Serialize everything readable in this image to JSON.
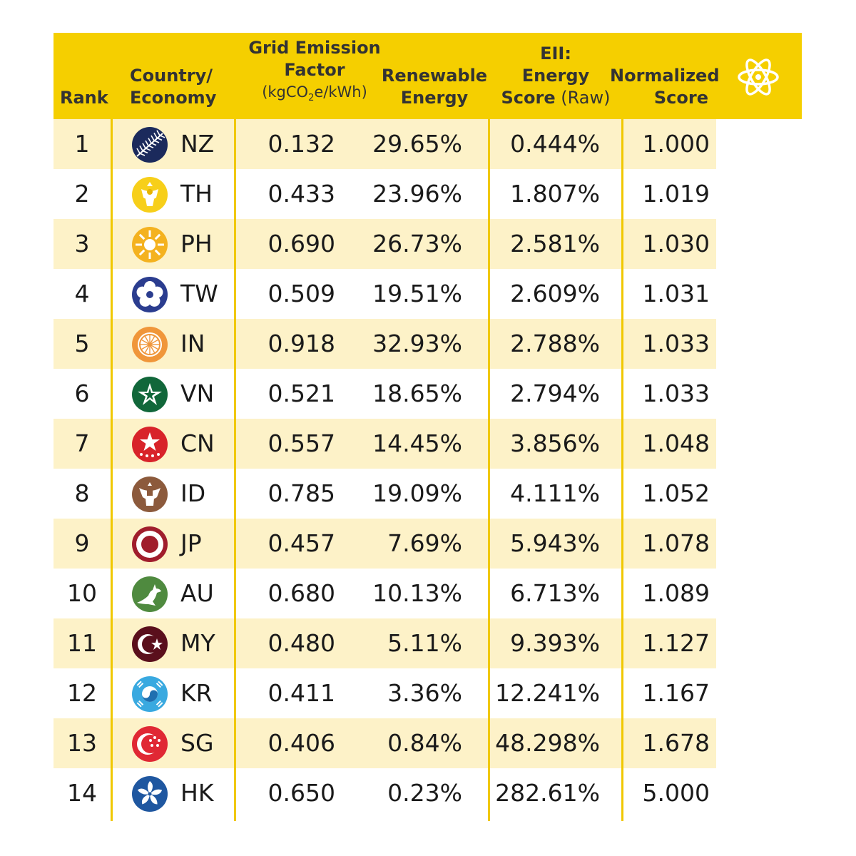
{
  "chart_data": {
    "type": "table",
    "columns": {
      "rank": "Rank",
      "country_line1": "Country/",
      "country_line2": "Economy",
      "grid_line1": "Grid Emission",
      "grid_line2": "Factor",
      "grid_unit_a": "(kgCO",
      "grid_unit_sub": "2",
      "grid_unit_b": "e/kWh)",
      "renew_line1": "Renewable",
      "renew_line2": "Energy",
      "eii_line1": "EII:",
      "eii_line2": "Energy",
      "eii_line3_bold": "Score",
      "eii_line3_light": " (Raw)",
      "norm_line1": "Normalized",
      "norm_line2": "Score"
    },
    "rows": [
      {
        "rank": "1",
        "code": "NZ",
        "flag_icon": "silver-fern-icon",
        "grid": "0.132",
        "renewable": "29.65%",
        "eii_raw": "0.444%",
        "normalized": "1.000"
      },
      {
        "rank": "2",
        "code": "TH",
        "flag_icon": "garuda-emblem-icon",
        "grid": "0.433",
        "renewable": "23.96%",
        "eii_raw": "1.807%",
        "normalized": "1.019"
      },
      {
        "rank": "3",
        "code": "PH",
        "flag_icon": "sun-icon",
        "grid": "0.690",
        "renewable": "26.73%",
        "eii_raw": "2.581%",
        "normalized": "1.030"
      },
      {
        "rank": "4",
        "code": "TW",
        "flag_icon": "plum-blossom-icon",
        "grid": "0.509",
        "renewable": "19.51%",
        "eii_raw": "2.609%",
        "normalized": "1.031"
      },
      {
        "rank": "5",
        "code": "IN",
        "flag_icon": "ashoka-chakra-icon",
        "grid": "0.918",
        "renewable": "32.93%",
        "eii_raw": "2.788%",
        "normalized": "1.033"
      },
      {
        "rank": "6",
        "code": "VN",
        "flag_icon": "star-icon",
        "grid": "0.521",
        "renewable": "18.65%",
        "eii_raw": "2.794%",
        "normalized": "1.033"
      },
      {
        "rank": "7",
        "code": "CN",
        "flag_icon": "five-stars-icon",
        "grid": "0.557",
        "renewable": "14.45%",
        "eii_raw": "3.856%",
        "normalized": "1.048"
      },
      {
        "rank": "8",
        "code": "ID",
        "flag_icon": "garuda-pancasila-icon",
        "grid": "0.785",
        "renewable": "19.09%",
        "eii_raw": "4.111%",
        "normalized": "1.052"
      },
      {
        "rank": "9",
        "code": "JP",
        "flag_icon": "rising-sun-disc-icon",
        "grid": "0.457",
        "renewable": "7.69%",
        "eii_raw": "5.943%",
        "normalized": "1.078"
      },
      {
        "rank": "10",
        "code": "AU",
        "flag_icon": "kangaroo-icon",
        "grid": "0.680",
        "renewable": "10.13%",
        "eii_raw": "6.713%",
        "normalized": "1.089"
      },
      {
        "rank": "11",
        "code": "MY",
        "flag_icon": "crescent-star-icon",
        "grid": "0.480",
        "renewable": "5.11%",
        "eii_raw": "9.393%",
        "normalized": "1.127"
      },
      {
        "rank": "12",
        "code": "KR",
        "flag_icon": "taegeuk-icon",
        "grid": "0.411",
        "renewable": "3.36%",
        "eii_raw": "12.241%",
        "normalized": "1.167"
      },
      {
        "rank": "13",
        "code": "SG",
        "flag_icon": "crescent-five-stars-icon",
        "grid": "0.406",
        "renewable": "0.84%",
        "eii_raw": "48.298%",
        "normalized": "1.678"
      },
      {
        "rank": "14",
        "code": "HK",
        "flag_icon": "bauhinia-icon",
        "grid": "0.650",
        "renewable": "0.23%",
        "eii_raw": "282.61%",
        "normalized": "5.000"
      }
    ]
  },
  "colors": {
    "header_bg": "#f5cf00",
    "row_shade": "#fdf2c8",
    "divider": "#f0c800",
    "text": "#1a1a1a"
  },
  "logo_icon": "atom-icon"
}
